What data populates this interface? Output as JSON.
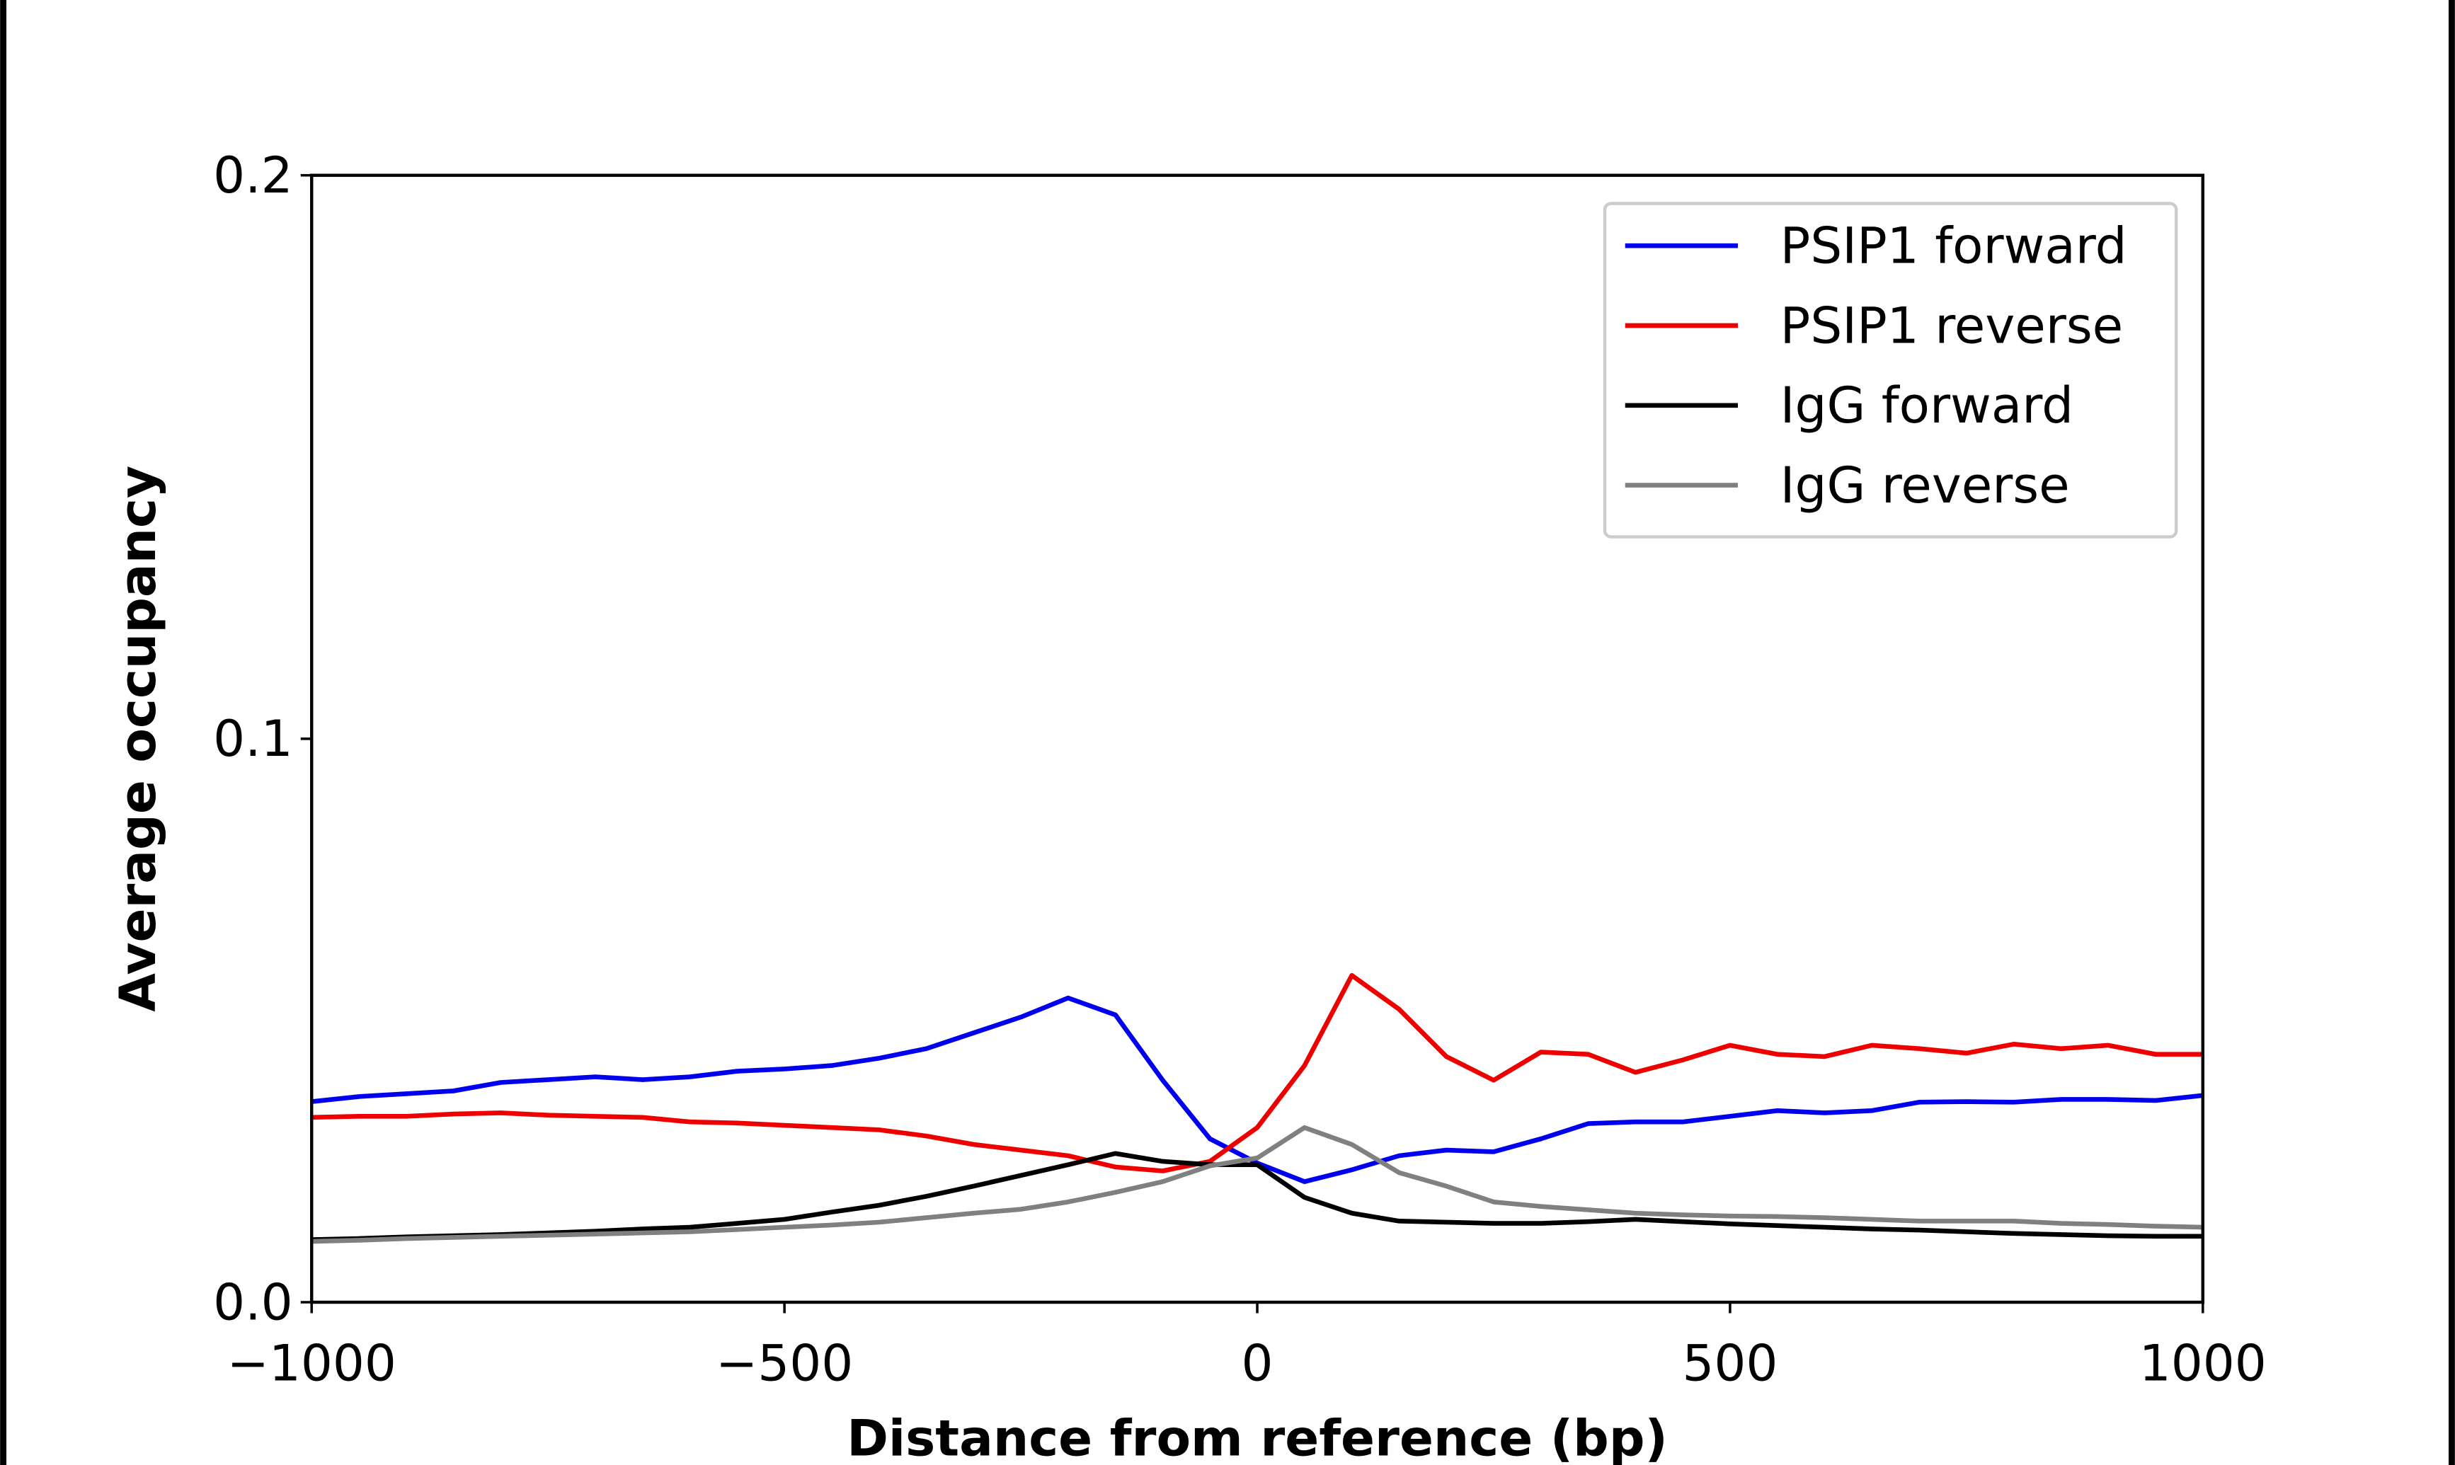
{
  "chart_data": {
    "type": "line",
    "xlabel": "Distance from reference (bp)",
    "ylabel": "Average occupancy",
    "x": [
      -1000,
      -950,
      -900,
      -850,
      -800,
      -750,
      -700,
      -650,
      -600,
      -550,
      -500,
      -450,
      -400,
      -350,
      -300,
      -250,
      -200,
      -150,
      -100,
      -50,
      0,
      50,
      100,
      150,
      200,
      250,
      300,
      350,
      400,
      450,
      500,
      550,
      600,
      650,
      700,
      750,
      800,
      850,
      900,
      950,
      1000
    ],
    "series": [
      {
        "name": "PSIP1 forward",
        "color": "#0000ee",
        "values": [
          0.0356,
          0.0365,
          0.037,
          0.0375,
          0.039,
          0.0395,
          0.04,
          0.0395,
          0.04,
          0.041,
          0.0414,
          0.042,
          0.0433,
          0.045,
          0.0478,
          0.0506,
          0.054,
          0.051,
          0.0394,
          0.029,
          0.0247,
          0.0214,
          0.0235,
          0.026,
          0.027,
          0.0267,
          0.029,
          0.0317,
          0.032,
          0.032,
          0.033,
          0.034,
          0.0336,
          0.034,
          0.0355,
          0.0356,
          0.0355,
          0.036,
          0.036,
          0.0358,
          0.0367
        ]
      },
      {
        "name": "PSIP1 reverse",
        "color": "#ee0000",
        "values": [
          0.0328,
          0.033,
          0.033,
          0.0334,
          0.0336,
          0.0332,
          0.033,
          0.0328,
          0.032,
          0.0318,
          0.0314,
          0.031,
          0.0306,
          0.0295,
          0.028,
          0.027,
          0.026,
          0.024,
          0.0233,
          0.025,
          0.031,
          0.042,
          0.058,
          0.052,
          0.0436,
          0.0394,
          0.0444,
          0.044,
          0.0408,
          0.043,
          0.0456,
          0.044,
          0.0436,
          0.0456,
          0.045,
          0.0442,
          0.0458,
          0.045,
          0.0456,
          0.044,
          0.044
        ]
      },
      {
        "name": "IgG forward",
        "color": "#000000",
        "values": [
          0.0111,
          0.0113,
          0.0116,
          0.0118,
          0.012,
          0.0123,
          0.0126,
          0.013,
          0.0133,
          0.014,
          0.0147,
          0.016,
          0.0172,
          0.0188,
          0.0206,
          0.0225,
          0.0244,
          0.0264,
          0.025,
          0.0244,
          0.0244,
          0.0186,
          0.0158,
          0.0144,
          0.0142,
          0.014,
          0.014,
          0.0143,
          0.0147,
          0.0143,
          0.0139,
          0.0136,
          0.0133,
          0.013,
          0.0128,
          0.0125,
          0.0122,
          0.012,
          0.0118,
          0.0117,
          0.0117
        ]
      },
      {
        "name": "IgG reverse",
        "color": "#808080",
        "values": [
          0.0108,
          0.011,
          0.0113,
          0.0115,
          0.0117,
          0.0119,
          0.0121,
          0.0123,
          0.0125,
          0.0129,
          0.0133,
          0.0137,
          0.0142,
          0.015,
          0.0158,
          0.0165,
          0.0178,
          0.0195,
          0.0214,
          0.0242,
          0.0256,
          0.031,
          0.028,
          0.023,
          0.0206,
          0.0178,
          0.017,
          0.0164,
          0.0158,
          0.0155,
          0.0153,
          0.0152,
          0.015,
          0.0147,
          0.0144,
          0.0144,
          0.0144,
          0.014,
          0.0138,
          0.0135,
          0.0133
        ]
      }
    ],
    "xlim": [
      -1000,
      1000
    ],
    "xticks": [
      {
        "value": -1000,
        "label": "−1000"
      },
      {
        "value": -500,
        "label": "−500"
      },
      0,
      500,
      1000
    ],
    "ylim": [
      0,
      0.2
    ],
    "yticks": [
      {
        "value": 0,
        "label": "0.0"
      },
      0.1,
      0.2
    ],
    "legend": "upper right"
  }
}
